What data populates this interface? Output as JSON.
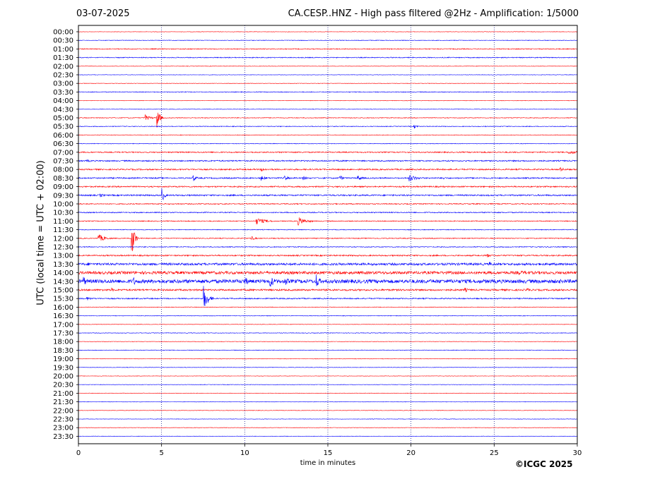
{
  "header": {
    "date": "03-07-2025",
    "title": "CA.CESP..HNZ - High pass filtered @2Hz - Amplification: 1/5000"
  },
  "footer": {
    "copyright": "©ICGC 2025"
  },
  "colors": {
    "odd_trace": "#ff0000",
    "even_trace": "#0000ff",
    "grid": "#000080"
  },
  "chart_data": {
    "type": "line",
    "title": "CA.CESP..HNZ - High pass filtered @2Hz - Amplification: 1/5000",
    "xlabel": "time in minutes",
    "ylabel": "UTC (local time = UTC + 02:00)",
    "xlim": [
      0,
      30
    ],
    "x_ticks": [
      0,
      5,
      10,
      15,
      20,
      25,
      30
    ],
    "x_grid": "dotted vertical lines at 5, 10, 15, 20, 25",
    "rows": [
      "00:00",
      "00:30",
      "01:00",
      "01:30",
      "02:00",
      "02:30",
      "03:00",
      "03:30",
      "04:00",
      "04:30",
      "05:00",
      "05:30",
      "06:00",
      "06:30",
      "07:00",
      "07:30",
      "08:00",
      "08:30",
      "09:00",
      "09:30",
      "10:00",
      "10:30",
      "11:00",
      "11:30",
      "12:00",
      "12:30",
      "13:00",
      "13:30",
      "14:00",
      "14:30",
      "15:00",
      "15:30",
      "16:00",
      "16:30",
      "17:00",
      "17:30",
      "18:00",
      "18:30",
      "19:00",
      "19:30",
      "20:00",
      "20:30",
      "21:00",
      "21:30",
      "22:00",
      "22:30",
      "23:00",
      "23:30"
    ],
    "trace_colors": "alternating red and blue",
    "base_noise": [
      0.3,
      0.4,
      0.6,
      0.6,
      0.3,
      0.3,
      0.3,
      0.5,
      0.3,
      0.3,
      0.5,
      0.5,
      0.4,
      0.4,
      0.8,
      0.9,
      0.9,
      0.9,
      0.9,
      1.0,
      0.7,
      0.7,
      0.6,
      0.5,
      0.6,
      0.6,
      0.9,
      1.6,
      2.0,
      2.6,
      1.2,
      0.8,
      0.4,
      0.4,
      0.3,
      0.4,
      0.3,
      0.4,
      0.3,
      0.3,
      0.3,
      0.3,
      0.3,
      0.3,
      0.3,
      0.3,
      0.3,
      0.3
    ],
    "events": [
      {
        "row": "05:00",
        "minute": 4.0,
        "amplitude": 5,
        "duration": 0.3
      },
      {
        "row": "05:00",
        "minute": 4.7,
        "amplitude": 18,
        "duration": 0.15
      },
      {
        "row": "05:30",
        "minute": 20.2,
        "amplitude": 3,
        "duration": 0.2
      },
      {
        "row": "07:00",
        "minute": 29.5,
        "amplitude": 3,
        "duration": 0.6
      },
      {
        "row": "07:30",
        "minute": 0.5,
        "amplitude": 2,
        "duration": 0.4
      },
      {
        "row": "08:00",
        "minute": 11.0,
        "amplitude": 3,
        "duration": 0.4
      },
      {
        "row": "08:00",
        "minute": 28.9,
        "amplitude": 4,
        "duration": 0.3
      },
      {
        "row": "08:30",
        "minute": 6.9,
        "amplitude": 5,
        "duration": 0.2
      },
      {
        "row": "08:30",
        "minute": 11.0,
        "amplitude": 4,
        "duration": 0.3
      },
      {
        "row": "08:30",
        "minute": 12.4,
        "amplitude": 4,
        "duration": 0.25
      },
      {
        "row": "08:30",
        "minute": 13.5,
        "amplitude": 3,
        "duration": 0.3
      },
      {
        "row": "08:30",
        "minute": 15.7,
        "amplitude": 5,
        "duration": 0.2
      },
      {
        "row": "08:30",
        "minute": 16.8,
        "amplitude": 4,
        "duration": 0.3
      },
      {
        "row": "08:30",
        "minute": 19.9,
        "amplitude": 5,
        "duration": 0.5
      },
      {
        "row": "08:30",
        "minute": 21.9,
        "amplitude": 3,
        "duration": 0.2
      },
      {
        "row": "09:30",
        "minute": 1.3,
        "amplitude": 3,
        "duration": 0.3
      },
      {
        "row": "09:30",
        "minute": 5.0,
        "amplitude": 12,
        "duration": 0.15
      },
      {
        "row": "11:00",
        "minute": 10.7,
        "amplitude": 5,
        "duration": 0.6
      },
      {
        "row": "11:00",
        "minute": 13.2,
        "amplitude": 6,
        "duration": 0.5
      },
      {
        "row": "12:00",
        "minute": 1.2,
        "amplitude": 6,
        "duration": 0.4
      },
      {
        "row": "12:00",
        "minute": 3.2,
        "amplitude": 30,
        "duration": 0.15
      },
      {
        "row": "12:00",
        "minute": 10.4,
        "amplitude": 3,
        "duration": 0.3
      },
      {
        "row": "13:00",
        "minute": 24.6,
        "amplitude": 3,
        "duration": 0.2
      },
      {
        "row": "13:30",
        "minute": 0.6,
        "amplitude": 3,
        "duration": 0.3
      },
      {
        "row": "13:30",
        "minute": 24.7,
        "amplitude": 4,
        "duration": 0.2
      },
      {
        "row": "14:00",
        "minute": 26.5,
        "amplitude": 3,
        "duration": 2.0
      },
      {
        "row": "14:30",
        "minute": 0.3,
        "amplitude": 8,
        "duration": 0.2
      },
      {
        "row": "14:30",
        "minute": 3.3,
        "amplitude": 7,
        "duration": 0.2
      },
      {
        "row": "14:30",
        "minute": 10.0,
        "amplitude": 6,
        "duration": 0.4
      },
      {
        "row": "14:30",
        "minute": 11.5,
        "amplitude": 10,
        "duration": 0.3
      },
      {
        "row": "14:30",
        "minute": 12.4,
        "amplitude": 7,
        "duration": 0.3
      },
      {
        "row": "14:30",
        "minute": 14.3,
        "amplitude": 12,
        "duration": 0.2
      },
      {
        "row": "15:00",
        "minute": 2.0,
        "amplitude": 3,
        "duration": 0.2
      },
      {
        "row": "15:00",
        "minute": 23.2,
        "amplitude": 4,
        "duration": 0.25
      },
      {
        "row": "15:00",
        "minute": 27.0,
        "amplitude": 3,
        "duration": 0.2
      },
      {
        "row": "15:30",
        "minute": 0.5,
        "amplitude": 3,
        "duration": 0.3
      },
      {
        "row": "15:30",
        "minute": 7.5,
        "amplitude": 20,
        "duration": 0.25
      }
    ]
  }
}
